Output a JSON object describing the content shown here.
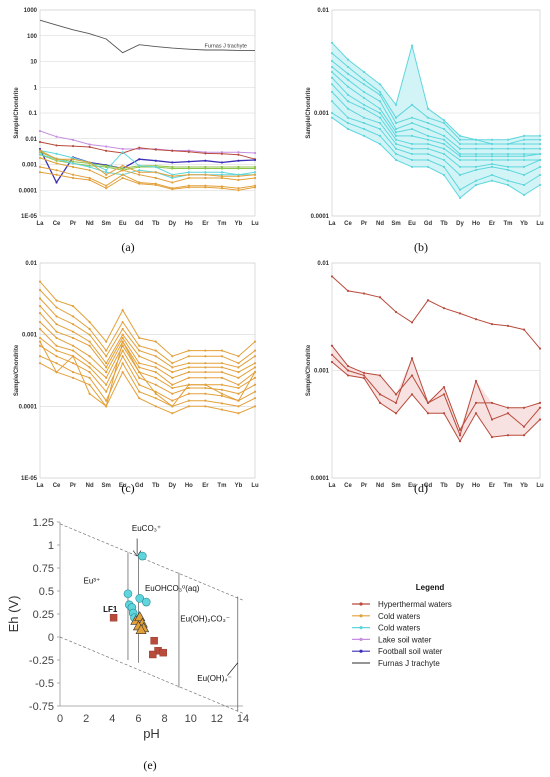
{
  "colors": {
    "hyperthermal": "#b84b3c",
    "cold_orange": "#e2a03a",
    "cold_cyan": "#5fd6dd",
    "lake": "#c58ee0",
    "football": "#3b2fb8",
    "trachyte": "#555555",
    "green": "#8fc44a",
    "fill_cyan": "#c7f1f4",
    "fill_pink": "#f6dada"
  },
  "panels": {
    "a": {
      "label": "(a)",
      "ylabel": "Sample/Chondrite"
    },
    "b": {
      "label": "(b)",
      "ylabel": "Sample/Chondrite"
    },
    "c": {
      "label": "(c)",
      "ylabel": "Sample/Chondrite"
    },
    "d": {
      "label": "(d)",
      "ylabel": "Sample/Chondrite"
    },
    "e": {
      "label": "(e)"
    }
  },
  "chart_data": [
    {
      "id": "a",
      "type": "line",
      "log_y": true,
      "ylabel": "Sample/Chondrite",
      "categories": [
        "La",
        "Ce",
        "Pr",
        "Nd",
        "Sm",
        "Eu",
        "Gd",
        "Tb",
        "Dy",
        "Ho",
        "Er",
        "Tm",
        "Yb",
        "Lu"
      ],
      "y_ticks": [
        "1000",
        "100",
        "10",
        "1",
        "0.1",
        "0.01",
        "0.001",
        "0.0001",
        "1E-05"
      ],
      "ylim": [
        1e-05,
        1000
      ],
      "annotation": "Furnas J trachyte",
      "series": [
        {
          "group": "trachyte",
          "values": [
            400,
            260,
            170,
            120,
            75,
            22,
            45,
            38,
            33,
            30,
            28,
            28,
            27,
            27
          ]
        },
        {
          "group": "lake",
          "values": [
            0.02,
            0.012,
            0.009,
            0.006,
            0.005,
            0.004,
            0.004,
            0.004,
            0.0035,
            0.0035,
            0.003,
            0.003,
            0.003,
            0.0028
          ]
        },
        {
          "group": "hyperthermal",
          "values": [
            0.0075,
            0.0055,
            0.0052,
            0.0048,
            0.0034,
            0.0028,
            0.0045,
            0.0038,
            0.0034,
            0.0031,
            0.0027,
            0.0026,
            0.0024,
            0.0016
          ]
        },
        {
          "group": "football",
          "values": [
            0.004,
            0.0002,
            0.0019,
            0.0012,
            0.00095,
            0.0007,
            0.0016,
            0.0014,
            0.0012,
            0.0013,
            0.0014,
            0.0012,
            0.0014,
            0.0015
          ]
        },
        {
          "group": "green",
          "values": [
            0.003,
            0.0017,
            0.0013,
            0.0011,
            0.0009,
            0.0007,
            0.0009,
            0.0009,
            0.0008,
            0.0008,
            0.0008,
            0.0008,
            0.0008,
            0.0008
          ]
        },
        {
          "group": "green",
          "values": [
            0.0024,
            0.0014,
            0.0011,
            0.0009,
            0.0008,
            0.0006,
            0.0008,
            0.0008,
            0.0007,
            0.0007,
            0.0007,
            0.0007,
            0.0007,
            0.0007
          ]
        },
        {
          "group": "cold_cyan",
          "values": [
            0.0035,
            0.0026,
            0.0018,
            0.0012,
            0.0006,
            0.003,
            0.0009,
            0.0008,
            0.0004,
            0.0005,
            0.0005,
            0.0005,
            0.0004,
            0.0005
          ]
        },
        {
          "group": "cold_cyan",
          "values": [
            0.0025,
            0.0016,
            0.0011,
            0.0008,
            0.0005,
            0.0004,
            0.0006,
            0.0005,
            0.0003,
            0.0004,
            0.0004,
            0.0004,
            0.0004,
            0.0004
          ]
        },
        {
          "group": "cold_orange",
          "values": [
            0.0035,
            0.0016,
            0.0016,
            0.0012,
            0.0004,
            0.0009,
            0.0005,
            0.0005,
            0.00035,
            0.0004,
            0.0004,
            0.00035,
            0.00035,
            0.0004
          ]
        },
        {
          "group": "cold_orange",
          "values": [
            0.0018,
            0.0011,
            0.0008,
            0.0006,
            0.0003,
            0.0006,
            0.0004,
            0.0003,
            0.0002,
            0.0003,
            0.0003,
            0.0003,
            0.00025,
            0.0003
          ]
        },
        {
          "group": "cold_orange",
          "values": [
            0.0008,
            0.0006,
            0.0004,
            0.0003,
            0.00015,
            0.0004,
            0.0002,
            0.00018,
            0.00012,
            0.00015,
            0.00015,
            0.00014,
            0.00012,
            0.00015
          ]
        },
        {
          "group": "cold_orange",
          "values": [
            0.0005,
            0.0004,
            0.0003,
            0.00025,
            0.00012,
            0.0003,
            0.00018,
            0.00016,
            0.00011,
            0.00013,
            0.00013,
            0.00012,
            0.0001,
            0.00013
          ]
        }
      ]
    },
    {
      "id": "b",
      "type": "line",
      "log_y": true,
      "ylabel": "Sample/Chondrite",
      "categories": [
        "La",
        "Ce",
        "Pr",
        "Nd",
        "Sm",
        "Eu",
        "Gd",
        "Tb",
        "Dy",
        "Ho",
        "Er",
        "Tm",
        "Yb",
        "Lu"
      ],
      "y_ticks": [
        "0.01",
        "0.001",
        "0.0001"
      ],
      "ylim": [
        0.0001,
        0.01
      ],
      "series": [
        {
          "values": [
            0.0048,
            0.0033,
            0.0025,
            0.0019,
            0.0012,
            0.0045,
            0.0011,
            0.00085,
            0.0006,
            0.00055,
            0.00055,
            0.00055,
            0.0006,
            0.0006
          ]
        },
        {
          "values": [
            0.0038,
            0.0028,
            0.0021,
            0.0016,
            0.0009,
            0.0012,
            0.0009,
            0.0008,
            0.00055,
            0.00055,
            0.0005,
            0.0005,
            0.00055,
            0.00055
          ]
        },
        {
          "values": [
            0.0032,
            0.0024,
            0.0019,
            0.0015,
            0.0008,
            0.0009,
            0.0008,
            0.0007,
            0.0005,
            0.0005,
            0.0005,
            0.0005,
            0.0005,
            0.0005
          ]
        },
        {
          "values": [
            0.0028,
            0.0021,
            0.0016,
            0.0013,
            0.0007,
            0.0008,
            0.0007,
            0.0006,
            0.00045,
            0.00045,
            0.00045,
            0.00045,
            0.00045,
            0.00045
          ]
        },
        {
          "values": [
            0.0025,
            0.0018,
            0.0014,
            0.0011,
            0.00065,
            0.0007,
            0.0006,
            0.00055,
            0.0004,
            0.0004,
            0.0004,
            0.0004,
            0.0004,
            0.0004
          ]
        },
        {
          "values": [
            0.0022,
            0.0015,
            0.0012,
            0.001,
            0.0006,
            0.0006,
            0.00055,
            0.0005,
            0.00038,
            0.00038,
            0.00038,
            0.00038,
            0.00038,
            0.0004
          ]
        },
        {
          "values": [
            0.0019,
            0.0013,
            0.0011,
            0.0009,
            0.00055,
            0.0005,
            0.0005,
            0.00045,
            0.00035,
            0.00035,
            0.00035,
            0.00035,
            0.00035,
            0.00035
          ]
        },
        {
          "values": [
            0.0016,
            0.0011,
            0.0009,
            0.0008,
            0.0005,
            0.00045,
            0.00045,
            0.0004,
            0.0003,
            0.0003,
            0.00032,
            0.0003,
            0.0003,
            0.00035
          ]
        },
        {
          "values": [
            0.0013,
            0.0009,
            0.0008,
            0.0007,
            0.00045,
            0.0004,
            0.0004,
            0.00035,
            0.00025,
            0.00028,
            0.0003,
            0.00028,
            0.00025,
            0.0003
          ]
        },
        {
          "values": [
            0.001,
            0.0008,
            0.0007,
            0.0006,
            0.0004,
            0.00035,
            0.00035,
            0.0003,
            0.00018,
            0.00022,
            0.00025,
            0.00022,
            0.0002,
            0.00025
          ]
        },
        {
          "values": [
            0.0009,
            0.0007,
            0.0006,
            0.0005,
            0.00035,
            0.0003,
            0.0003,
            0.00025,
            0.00015,
            0.0002,
            0.00022,
            0.0002,
            0.00016,
            0.0002
          ]
        }
      ]
    },
    {
      "id": "c",
      "type": "line",
      "log_y": true,
      "ylabel": "Sample/Chondrite",
      "categories": [
        "La",
        "Ce",
        "Pr",
        "Nd",
        "Sm",
        "Eu",
        "Gd",
        "Tb",
        "Dy",
        "Ho",
        "Er",
        "Tm",
        "Yb",
        "Lu"
      ],
      "y_ticks": [
        "0.01",
        "0.001",
        "0.0001",
        "1E-05"
      ],
      "ylim": [
        1e-05,
        0.01
      ],
      "series": [
        {
          "values": [
            0.0055,
            0.003,
            0.0025,
            0.0015,
            0.0008,
            0.0022,
            0.0009,
            0.0008,
            0.0005,
            0.0006,
            0.0006,
            0.0006,
            0.0005,
            0.0008
          ]
        },
        {
          "values": [
            0.0042,
            0.0024,
            0.0018,
            0.0012,
            0.0006,
            0.0015,
            0.0007,
            0.0006,
            0.0004,
            0.0005,
            0.0005,
            0.0005,
            0.0004,
            0.0006
          ]
        },
        {
          "values": [
            0.0032,
            0.0018,
            0.0014,
            0.001,
            0.0005,
            0.0012,
            0.0006,
            0.0005,
            0.00035,
            0.0004,
            0.0004,
            0.0004,
            0.00035,
            0.0005
          ]
        },
        {
          "values": [
            0.0025,
            0.0014,
            0.0011,
            0.0008,
            0.0004,
            0.001,
            0.0005,
            0.0004,
            0.0003,
            0.00035,
            0.00035,
            0.00035,
            0.0003,
            0.0004
          ]
        },
        {
          "values": [
            0.002,
            0.0011,
            0.0009,
            0.0007,
            0.00035,
            0.0009,
            0.0004,
            0.00035,
            0.00025,
            0.0003,
            0.0003,
            0.0003,
            0.00025,
            0.00035
          ]
        },
        {
          "values": [
            0.0015,
            0.0009,
            0.0007,
            0.0005,
            0.0003,
            0.0008,
            0.00035,
            0.0003,
            0.0002,
            0.00025,
            0.00025,
            0.00025,
            0.0002,
            0.0003
          ]
        },
        {
          "values": [
            0.0012,
            0.0007,
            0.0006,
            0.0004,
            0.00025,
            0.0007,
            0.0003,
            0.00025,
            0.00018,
            0.0002,
            0.0002,
            0.0002,
            0.00018,
            0.00025
          ]
        },
        {
          "values": [
            0.0009,
            0.0006,
            0.0005,
            0.00035,
            0.0002,
            0.0006,
            0.00025,
            0.0002,
            0.00015,
            0.00018,
            0.00018,
            0.00017,
            0.00015,
            0.0002
          ]
        },
        {
          "values": [
            0.0007,
            0.0005,
            0.0004,
            0.0003,
            0.00016,
            0.0005,
            0.0002,
            0.00016,
            0.00012,
            0.00015,
            0.00015,
            0.00014,
            0.00012,
            0.00016
          ]
        },
        {
          "values": [
            0.0005,
            0.0004,
            0.0003,
            0.00025,
            0.00012,
            0.0004,
            0.00016,
            0.00013,
            0.0001,
            0.00012,
            0.00012,
            0.00011,
            0.0001,
            0.00013
          ]
        },
        {
          "values": [
            0.0004,
            0.0003,
            0.00025,
            0.0002,
            0.0001,
            0.0003,
            0.00013,
            0.0001,
            8e-05,
            0.0001,
            0.0001,
            9e-05,
            8e-05,
            0.0001
          ]
        },
        {
          "values": [
            0.0008,
            0.0003,
            0.0005,
            0.00015,
            0.0001,
            0.0008,
            0.0003,
            0.00015,
            0.0001,
            0.0002,
            0.0002,
            0.00015,
            0.00012,
            0.0003
          ]
        }
      ]
    },
    {
      "id": "d",
      "type": "line",
      "log_y": true,
      "ylabel": "Sample/Chondrite",
      "categories": [
        "La",
        "Ce",
        "Pr",
        "Nd",
        "Sm",
        "Eu",
        "Gd",
        "Tb",
        "Dy",
        "Ho",
        "Er",
        "Tm",
        "Yb",
        "Lu"
      ],
      "y_ticks": [
        "0.01",
        "0.001",
        "0.0001"
      ],
      "ylim": [
        0.0001,
        0.01
      ],
      "series": [
        {
          "values": [
            0.0075,
            0.0055,
            0.0052,
            0.0048,
            0.0035,
            0.0028,
            0.0045,
            0.0038,
            0.0034,
            0.003,
            0.0027,
            0.0026,
            0.0024,
            0.0016
          ]
        },
        {
          "values": [
            0.0017,
            0.0011,
            0.00095,
            0.0009,
            0.0006,
            0.0009,
            0.0005,
            0.0007,
            0.00028,
            0.0005,
            0.0005,
            0.00045,
            0.00045,
            0.0005
          ]
        },
        {
          "values": [
            0.0014,
            0.001,
            0.0009,
            0.0006,
            0.0005,
            0.0013,
            0.0005,
            0.0006,
            0.00025,
            0.0008,
            0.00035,
            0.0004,
            0.0003,
            0.00045
          ]
        },
        {
          "values": [
            0.0012,
            0.0009,
            0.00085,
            0.0005,
            0.0004,
            0.0006,
            0.0004,
            0.0004,
            0.00022,
            0.0004,
            0.00024,
            0.00025,
            0.00025,
            0.00035
          ]
        }
      ]
    },
    {
      "id": "e",
      "type": "scatter",
      "xlabel": "pH",
      "ylabel": "Eh (V)",
      "xlim": [
        0,
        14
      ],
      "ylim": [
        -0.75,
        1.25
      ],
      "x_ticks": [
        "0",
        "2",
        "4",
        "6",
        "8",
        "10",
        "12",
        "14"
      ],
      "y_ticks": [
        "1.25",
        "1",
        "0.75",
        "0.5",
        "0.25",
        "0",
        "-0.25",
        "-0.5",
        "-0.75"
      ],
      "fields": [
        "Eu³⁺",
        "EuCO₃⁺",
        "EuOHCO₃⁰(aq)",
        "Eu(OH)₂CO₃⁻",
        "Eu(OH)₄⁻"
      ],
      "point_label": "LF1",
      "series": [
        {
          "group": "hyperthermal",
          "marker": "square",
          "points": [
            [
              4.1,
              0.21
            ],
            [
              7.2,
              -0.04
            ],
            [
              7.5,
              -0.15
            ],
            [
              7.1,
              -0.19
            ],
            [
              7.9,
              -0.17
            ]
          ]
        },
        {
          "group": "cold_cyan",
          "marker": "circle",
          "points": [
            [
              6.3,
              0.88
            ],
            [
              5.2,
              0.47
            ],
            [
              6.1,
              0.42
            ],
            [
              6.6,
              0.38
            ],
            [
              5.3,
              0.35
            ],
            [
              5.5,
              0.32
            ],
            [
              5.6,
              0.26
            ],
            [
              5.7,
              0.21
            ]
          ]
        },
        {
          "group": "cold_orange",
          "marker": "triangle",
          "points": [
            [
              5.8,
              0.18
            ],
            [
              6.1,
              0.22
            ],
            [
              6.3,
              0.15
            ],
            [
              6.0,
              0.12
            ],
            [
              6.4,
              0.1
            ],
            [
              6.2,
              0.08
            ]
          ]
        }
      ],
      "legend_title": "Legend",
      "legend": [
        {
          "label": "Hyperthermal waters",
          "group": "hyperthermal"
        },
        {
          "label": "Cold waters",
          "group": "cold_orange"
        },
        {
          "label": "Cold waters",
          "group": "cold_cyan"
        },
        {
          "label": "Lake soil water",
          "group": "lake"
        },
        {
          "label": "Football soil water",
          "group": "football"
        },
        {
          "label": "Furnas J trachyte",
          "group": "trachyte"
        }
      ]
    }
  ]
}
